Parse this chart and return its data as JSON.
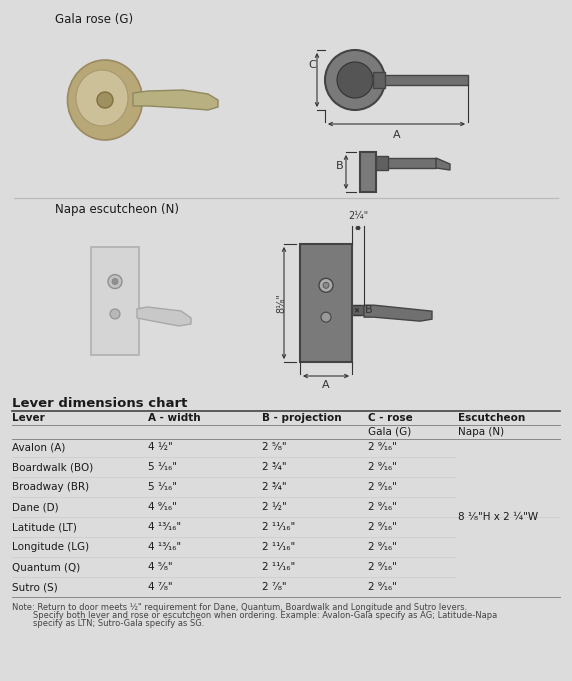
{
  "bg_color": "#dcdcdc",
  "table_bg": "#f5f5f5",
  "title": "Lever dimensions chart",
  "columns": [
    "Lever",
    "A - width",
    "B - projection",
    "C - rose",
    "Escutcheon"
  ],
  "sub_col3": "Gala (G)",
  "sub_col4": "Napa (N)",
  "rows": [
    [
      "Avalon (A)",
      "4 ½\"",
      "2 ⁵⁄₈\"",
      "2 ⁹⁄₁₆\""
    ],
    [
      "Boardwalk (BO)",
      "5 ¹⁄₁₆\"",
      "2 ¾\"",
      "2 ⁹⁄₁₆\""
    ],
    [
      "Broadway (BR)",
      "5 ¹⁄₁₆\"",
      "2 ¾\"",
      "2 ⁹⁄₁₆\""
    ],
    [
      "Dane (D)",
      "4 ⁹⁄₁₆\"",
      "2 ½\"",
      "2 ⁹⁄₁₆\""
    ],
    [
      "Latitude (LT)",
      "4 ¹³⁄₁₆\"",
      "2 ¹¹⁄₁₆\"",
      "2 ⁹⁄₁₆\""
    ],
    [
      "Longitude (LG)",
      "4 ¹³⁄₁₆\"",
      "2 ¹¹⁄₁₆\"",
      "2 ⁹⁄₁₆\""
    ],
    [
      "Quantum (Q)",
      "4 ⁵⁄₈\"",
      "2 ¹¹⁄₁₆\"",
      "2 ⁹⁄₁₆\""
    ],
    [
      "Sutro (S)",
      "4 ⁷⁄₈\"",
      "2 ⁷⁄₈\"",
      "2 ⁹⁄₁₆\""
    ]
  ],
  "escutcheon_note": "8 ¹⁄₈\"H x 2 ¼\"W",
  "note_line1": "Note: Return to door meets ½\" requirement for Dane, Quantum, Boardwalk and Longitude and Sutro levers.",
  "note_line2": "        Specify both lever and rose or escutcheon when ordering. Example: Avalon-Gala specify as AG; Latitude-Napa",
  "note_line3": "        specify as LTN; Sutro-Gala specify as SG.",
  "gala_label": "Gala rose (G)",
  "napa_label": "Napa escutcheon (N)",
  "dim_214": "2¼\"",
  "dim_818": "8¹⁄₈\"",
  "dim_A": "A",
  "dim_B": "B",
  "dim_C": "C",
  "text_color": "#1a1a1a",
  "dim_color": "#333333",
  "sep_color": "#bbbbbb",
  "header_line_color": "#555555"
}
